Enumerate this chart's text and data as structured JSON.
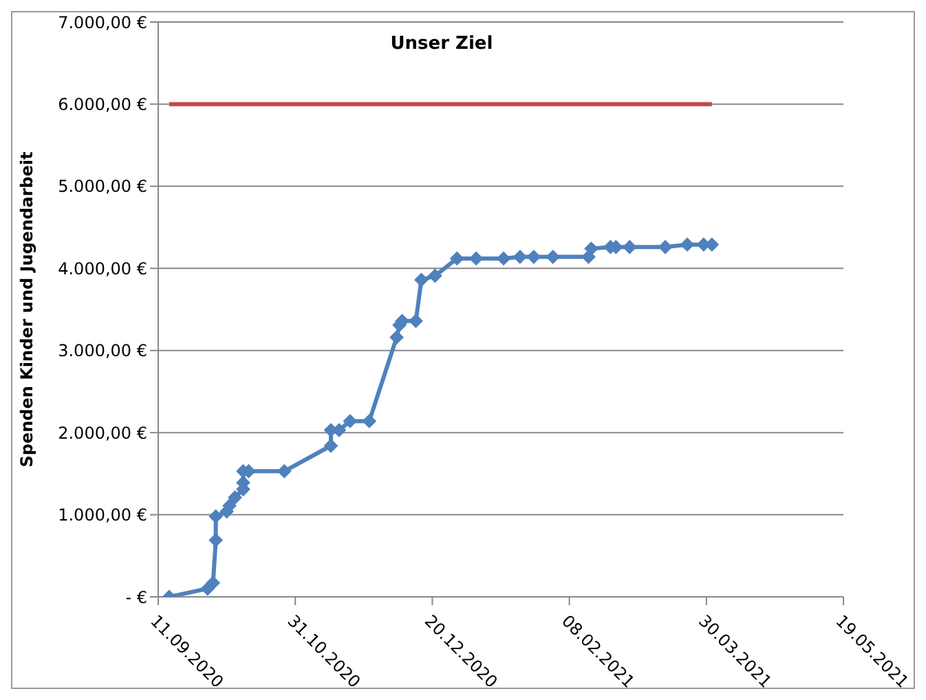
{
  "chart_data": {
    "type": "line",
    "ylabel": "Spenden Kinder und Jugendarbeit",
    "grid": "y",
    "legend": false,
    "marker": "diamond",
    "line_style": "solid",
    "xlim": [
      "2020-09-11",
      "2021-05-19"
    ],
    "xticks": [
      {
        "value": "2020-09-11",
        "label": "11.09.2020"
      },
      {
        "value": "2020-10-31",
        "label": "31.10.2020"
      },
      {
        "value": "2020-12-20",
        "label": "20.12.2020"
      },
      {
        "value": "2021-02-08",
        "label": "08.02.2021"
      },
      {
        "value": "2021-03-30",
        "label": "30.03.2021"
      },
      {
        "value": "2021-05-19",
        "label": "19.05.2021"
      }
    ],
    "ylim": [
      0,
      7000
    ],
    "yticks": [
      {
        "value": 0,
        "label": "-  €"
      },
      {
        "value": 1000,
        "label": "1.000,00 €"
      },
      {
        "value": 2000,
        "label": "2.000,00 €"
      },
      {
        "value": 3000,
        "label": "3.000,00 €"
      },
      {
        "value": 4000,
        "label": "4.000,00 €"
      },
      {
        "value": 5000,
        "label": "5.000,00 €"
      },
      {
        "value": 6000,
        "label": "6.000,00 €"
      },
      {
        "value": 7000,
        "label": "7.000,00 €"
      }
    ],
    "series": [
      {
        "color": "#4f81bd",
        "x": [
          "2020-09-15",
          "2020-09-29",
          "2020-10-01",
          "2020-10-02",
          "2020-10-02",
          "2020-10-06",
          "2020-10-07",
          "2020-10-09",
          "2020-10-12",
          "2020-10-12",
          "2020-10-12",
          "2020-10-14",
          "2020-10-27",
          "2020-11-13",
          "2020-11-13",
          "2020-11-16",
          "2020-11-20",
          "2020-11-27",
          "2020-12-07",
          "2020-12-08",
          "2020-12-09",
          "2020-12-14",
          "2020-12-16",
          "2020-12-21",
          "2020-12-29",
          "2021-01-05",
          "2021-01-15",
          "2021-01-21",
          "2021-01-26",
          "2021-02-02",
          "2021-02-15",
          "2021-02-16",
          "2021-02-23",
          "2021-02-25",
          "2021-03-02",
          "2021-03-15",
          "2021-03-23",
          "2021-03-29",
          "2021-04-01"
        ],
        "values": [
          0,
          100,
          170,
          690,
          980,
          1040,
          1110,
          1210,
          1310,
          1390,
          1530,
          1530,
          1530,
          1840,
          2030,
          2030,
          2140,
          2140,
          3160,
          3310,
          3360,
          3360,
          3860,
          3910,
          4120,
          4120,
          4120,
          4140,
          4140,
          4140,
          4140,
          4240,
          4260,
          4260,
          4260,
          4260,
          4290,
          4290,
          4290
        ]
      },
      {
        "name": "Unser Ziel",
        "color": "#be4b48",
        "marker": "none",
        "x": [
          "2020-09-15",
          "2021-04-01"
        ],
        "values": [
          6000,
          6000
        ]
      }
    ]
  }
}
